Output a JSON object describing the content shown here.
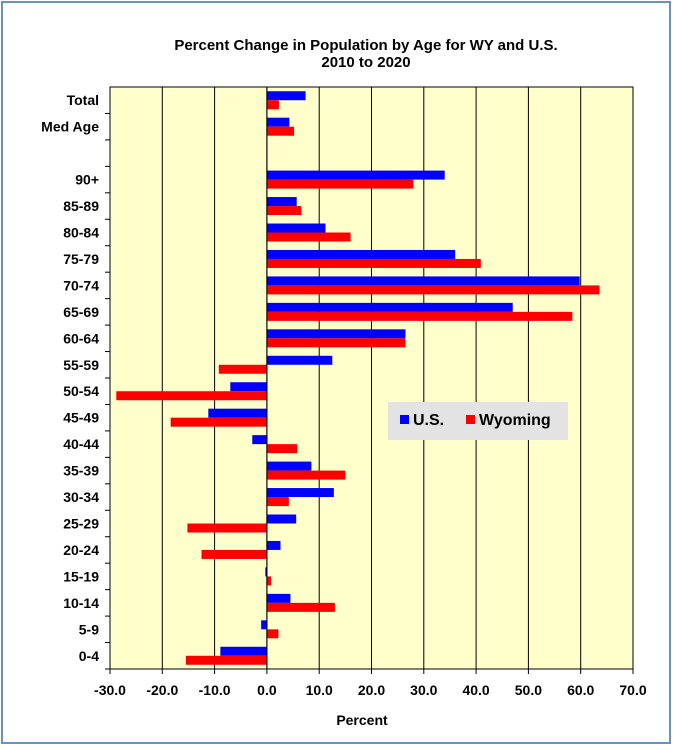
{
  "chart_data": {
    "type": "bar",
    "orientation": "horizontal",
    "title": "Percent Change in Population by Age for WY and U.S.",
    "subtitle": "2010 to 2020",
    "xlabel": "Percent",
    "ylabel": "",
    "xlim": [
      -30,
      70
    ],
    "xticks": [
      "-30.0",
      "-20.0",
      "-10.0",
      "0.0",
      "10.0",
      "20.0",
      "30.0",
      "40.0",
      "50.0",
      "60.0",
      "70.0"
    ],
    "xtick_values": [
      -30,
      -20,
      -10,
      0,
      10,
      20,
      30,
      40,
      50,
      60,
      70
    ],
    "grid": "vertical lines",
    "plot_background": "#ffffcc",
    "legend_position": "center-right",
    "categories": [
      "Total",
      "Med Age",
      "",
      "90+",
      "85-89",
      "80-84",
      "75-79",
      "70-74",
      "65-69",
      "60-64",
      "55-59",
      "50-54",
      "45-49",
      "40-44",
      "35-39",
      "30-34",
      "25-29",
      "20-24",
      "15-19",
      "10-14",
      "5-9",
      "0-4"
    ],
    "series": [
      {
        "name": "U.S.",
        "color": "#0000ff",
        "values": [
          7.4,
          4.3,
          null,
          34.0,
          5.7,
          11.2,
          36.0,
          59.8,
          47.0,
          26.5,
          12.5,
          -7.0,
          -11.2,
          -2.8,
          8.5,
          12.8,
          5.6,
          2.6,
          -0.3,
          4.5,
          -1.1,
          -8.9
        ]
      },
      {
        "name": "Wyoming",
        "color": "#ff0000",
        "values": [
          2.3,
          5.2,
          null,
          28.0,
          6.6,
          16.0,
          40.9,
          63.6,
          58.4,
          26.5,
          -9.2,
          -28.8,
          -18.4,
          5.8,
          15.0,
          4.2,
          -15.2,
          -12.5,
          0.8,
          13.0,
          2.2,
          -15.5
        ]
      }
    ]
  }
}
